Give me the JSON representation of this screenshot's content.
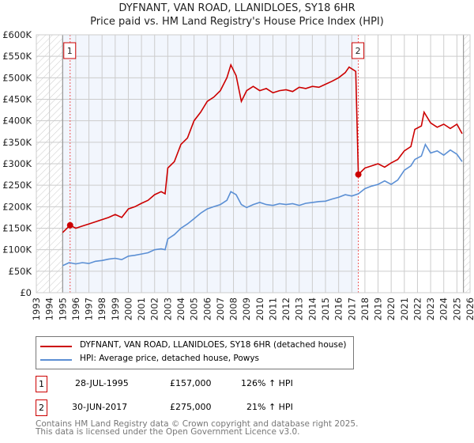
{
  "chart_data": {
    "type": "line",
    "title": "DYFNANT, VAN ROAD, LLANIDLOES, SY18 6HR",
    "subtitle": "Price paid vs. HM Land Registry's House Price Index (HPI)",
    "xlim": [
      1993,
      2026
    ],
    "ylim": [
      0,
      600000
    ],
    "xticks": [
      "1993",
      "1994",
      "1995",
      "1996",
      "1997",
      "1998",
      "1999",
      "2000",
      "2001",
      "2002",
      "2003",
      "2004",
      "2005",
      "2006",
      "2007",
      "2008",
      "2009",
      "2010",
      "2011",
      "2012",
      "2013",
      "2014",
      "2015",
      "2016",
      "2017",
      "2018",
      "2019",
      "2020",
      "2021",
      "2022",
      "2023",
      "2024",
      "2025",
      "2026"
    ],
    "yticks": [
      {
        "v": 0,
        "label": "£0"
      },
      {
        "v": 50000,
        "label": "£50K"
      },
      {
        "v": 100000,
        "label": "£100K"
      },
      {
        "v": 150000,
        "label": "£150K"
      },
      {
        "v": 200000,
        "label": "£200K"
      },
      {
        "v": 250000,
        "label": "£250K"
      },
      {
        "v": 300000,
        "label": "£300K"
      },
      {
        "v": 350000,
        "label": "£350K"
      },
      {
        "v": 400000,
        "label": "£400K"
      },
      {
        "v": 450000,
        "label": "£450K"
      },
      {
        "v": 500000,
        "label": "£500K"
      },
      {
        "v": 550000,
        "label": "£550K"
      },
      {
        "v": 600000,
        "label": "£600K"
      }
    ],
    "grid": true,
    "data_range": [
      1995,
      2025.5
    ],
    "highlight_range": [
      1995,
      2017.5
    ],
    "series": [
      {
        "name": "DYFNANT, VAN ROAD, LLANIDLOES, SY18 6HR (detached house)",
        "color": "#cc0000",
        "x": [
          1995,
          1995.57,
          1996,
          1996.5,
          1997,
          1997.5,
          1998,
          1998.5,
          1999,
          1999.5,
          2000,
          2000.5,
          2001,
          2001.5,
          2002,
          2002.5,
          2002.8,
          2003,
          2003.5,
          2004,
          2004.5,
          2005,
          2005.5,
          2006,
          2006.5,
          2007,
          2007.5,
          2007.8,
          2008.2,
          2008.6,
          2009,
          2009.5,
          2010,
          2010.5,
          2011,
          2011.5,
          2012,
          2012.5,
          2013,
          2013.5,
          2014,
          2014.5,
          2015,
          2015.5,
          2016,
          2016.5,
          2016.8,
          2017.3,
          2017.5,
          2018,
          2018.5,
          2019,
          2019.5,
          2020,
          2020.5,
          2021,
          2021.5,
          2021.8,
          2022.3,
          2022.5,
          2023,
          2023.5,
          2024,
          2024.5,
          2025,
          2025.4
        ],
        "y": [
          140000,
          157000,
          150000,
          155000,
          160000,
          165000,
          170000,
          175000,
          182000,
          175000,
          195000,
          200000,
          208000,
          215000,
          228000,
          235000,
          230000,
          290000,
          305000,
          345000,
          360000,
          400000,
          420000,
          445000,
          455000,
          470000,
          500000,
          530000,
          505000,
          445000,
          470000,
          480000,
          470000,
          475000,
          465000,
          470000,
          472000,
          468000,
          478000,
          475000,
          480000,
          478000,
          485000,
          492000,
          500000,
          512000,
          525000,
          515000,
          275000,
          290000,
          295000,
          300000,
          292000,
          302000,
          310000,
          330000,
          340000,
          380000,
          388000,
          420000,
          395000,
          385000,
          392000,
          382000,
          392000,
          370000
        ]
      },
      {
        "name": "HPI: Average price, detached house, Powys",
        "color": "#5b8fd4",
        "x": [
          1995,
          1995.5,
          1996,
          1996.5,
          1997,
          1997.5,
          1998,
          1998.5,
          1999,
          1999.5,
          2000,
          2000.5,
          2001,
          2001.5,
          2002,
          2002.5,
          2002.8,
          2003,
          2003.5,
          2004,
          2004.5,
          2005,
          2005.5,
          2006,
          2006.5,
          2007,
          2007.5,
          2007.8,
          2008.2,
          2008.6,
          2009,
          2009.5,
          2010,
          2010.5,
          2011,
          2011.5,
          2012,
          2012.5,
          2013,
          2013.5,
          2014,
          2014.5,
          2015,
          2015.5,
          2016,
          2016.5,
          2017,
          2017.5,
          2018,
          2018.5,
          2019,
          2019.5,
          2020,
          2020.5,
          2021,
          2021.5,
          2021.8,
          2022.3,
          2022.6,
          2023,
          2023.5,
          2024,
          2024.5,
          2025,
          2025.4
        ],
        "y": [
          63000,
          70000,
          67000,
          70000,
          68000,
          73000,
          75000,
          78000,
          80000,
          77000,
          85000,
          87000,
          90000,
          93000,
          100000,
          102000,
          100000,
          125000,
          135000,
          150000,
          160000,
          172000,
          185000,
          195000,
          200000,
          205000,
          215000,
          235000,
          228000,
          205000,
          198000,
          205000,
          210000,
          205000,
          203000,
          207000,
          205000,
          207000,
          203000,
          208000,
          210000,
          212000,
          213000,
          218000,
          222000,
          228000,
          225000,
          230000,
          242000,
          248000,
          252000,
          260000,
          252000,
          262000,
          285000,
          295000,
          310000,
          318000,
          345000,
          325000,
          330000,
          320000,
          332000,
          322000,
          305000
        ]
      }
    ],
    "annotations": [
      {
        "label": "1",
        "x": 1995.57,
        "y": 157000
      },
      {
        "label": "2",
        "x": 2017.5,
        "y": 275000
      }
    ]
  },
  "legend": {
    "items": [
      "DYFNANT, VAN ROAD, LLANIDLOES, SY18 6HR (detached house)",
      "HPI: Average price, detached house, Powys"
    ]
  },
  "transactions": [
    {
      "num": "1",
      "date": "28-JUL-1995",
      "price": "£157,000",
      "hpi": "126% ↑ HPI"
    },
    {
      "num": "2",
      "date": "30-JUN-2017",
      "price": "£275,000",
      "hpi": "21% ↑ HPI"
    }
  ],
  "footer": {
    "line1": "Contains HM Land Registry data © Crown copyright and database right 2025.",
    "line2": "This data is licensed under the Open Government Licence v3.0."
  }
}
